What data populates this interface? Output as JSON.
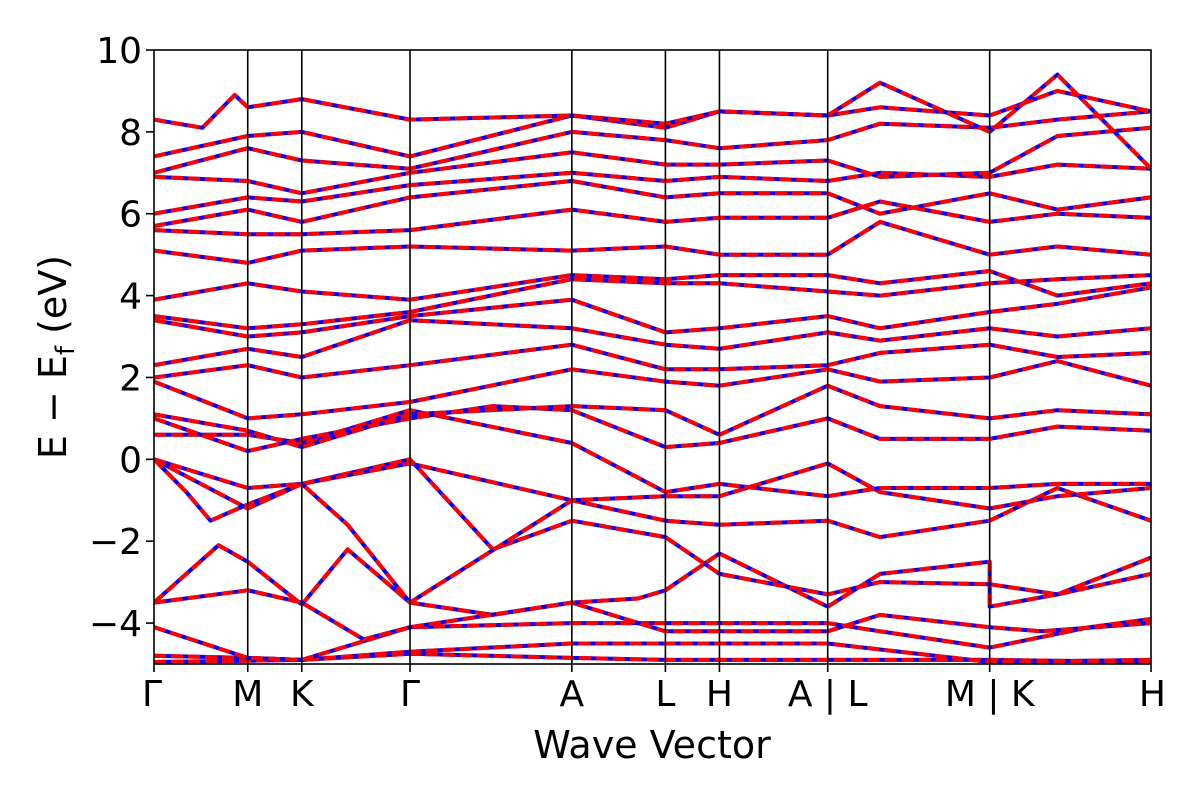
{
  "chart_data": {
    "type": "line",
    "xlabel": "Wave Vector",
    "ylabel": "E − E",
    "ylabel_sub": "f",
    "ylabel_unit": " (eV)",
    "ylim": [
      -5,
      10
    ],
    "yticks": [
      -4,
      -2,
      0,
      2,
      4,
      6,
      8,
      10
    ],
    "ytick_labels": [
      "−4",
      "−2",
      "0",
      "2",
      "4",
      "6",
      "8",
      "10"
    ],
    "kpath_labels": [
      "Γ",
      "M",
      "K",
      "Γ",
      "A",
      "L",
      "H",
      "A | L",
      "M | K",
      "H"
    ],
    "kpath_positions": [
      0,
      0.581,
      0.916,
      1.587,
      2.59,
      3.17,
      3.505,
      4.176,
      5.18,
      6.18
    ],
    "series_styles": [
      {
        "color": "#0000ff",
        "dash": "solid"
      },
      {
        "color": "#ff0000",
        "dash": "dashed"
      }
    ],
    "bands": [
      [
        [
          0,
          -4.95
        ],
        [
          0.916,
          -4.9
        ],
        [
          1.587,
          -4.75
        ],
        [
          2.59,
          -4.85
        ],
        [
          3.17,
          -4.9
        ],
        [
          4.176,
          -4.9
        ],
        [
          5.18,
          -4.9
        ],
        [
          6.18,
          -4.95
        ]
      ],
      [
        [
          0,
          -4.8
        ],
        [
          0.581,
          -4.85
        ],
        [
          0.916,
          -4.9
        ],
        [
          1.587,
          -4.7
        ],
        [
          2.59,
          -4.5
        ],
        [
          3.17,
          -4.5
        ],
        [
          3.505,
          -4.5
        ],
        [
          4.176,
          -4.5
        ],
        [
          5.18,
          -4.95
        ],
        [
          6.18,
          -4.9
        ]
      ],
      [
        [
          0,
          -4.1
        ],
        [
          0.581,
          -4.85
        ],
        [
          0.916,
          -4.9
        ],
        [
          1.587,
          -4.1
        ],
        [
          2.59,
          -4.0
        ],
        [
          3.17,
          -4.0
        ],
        [
          3.505,
          -4.0
        ],
        [
          4.176,
          -4.0
        ],
        [
          4.5,
          -4.2
        ],
        [
          5.18,
          -4.6
        ],
        [
          5.8,
          -4.1
        ],
        [
          6.18,
          -3.9
        ]
      ],
      [
        [
          0,
          -3.5
        ],
        [
          0.4,
          -2.1
        ],
        [
          0.581,
          -2.5
        ],
        [
          0.916,
          -3.55
        ],
        [
          1.2,
          -2.2
        ],
        [
          1.587,
          -3.5
        ],
        [
          2.1,
          -3.8
        ],
        [
          2.59,
          -3.5
        ],
        [
          3.17,
          -4.2
        ],
        [
          3.505,
          -4.2
        ],
        [
          4.176,
          -4.2
        ],
        [
          4.5,
          -3.8
        ],
        [
          5.18,
          -4.1
        ],
        [
          5.5,
          -4.2
        ],
        [
          6.18,
          -4.0
        ]
      ],
      [
        [
          0,
          -3.5
        ],
        [
          0.581,
          -3.2
        ],
        [
          0.916,
          -3.5
        ],
        [
          1.3,
          -4.4
        ],
        [
          1.587,
          -4.1
        ],
        [
          2.59,
          -3.5
        ],
        [
          3.0,
          -3.4
        ],
        [
          3.17,
          -3.2
        ],
        [
          3.505,
          -2.3
        ],
        [
          4.176,
          -3.6
        ],
        [
          4.5,
          -2.8
        ],
        [
          5.18,
          -2.5
        ],
        [
          5.18,
          -3.6
        ],
        [
          5.6,
          -3.3
        ],
        [
          6.18,
          -2.8
        ]
      ],
      [
        [
          0,
          0.0
        ],
        [
          0.2,
          -0.8
        ],
        [
          0.35,
          -1.5
        ],
        [
          0.581,
          -1.1
        ],
        [
          0.916,
          -0.6
        ],
        [
          1.587,
          0.0
        ],
        [
          2.1,
          -2.2
        ],
        [
          2.59,
          -1.5
        ],
        [
          3.17,
          -1.9
        ],
        [
          3.505,
          -2.8
        ],
        [
          4.176,
          -3.3
        ],
        [
          4.5,
          -3.0
        ],
        [
          5.18,
          -3.05
        ],
        [
          5.6,
          -3.3
        ],
        [
          6.18,
          -2.4
        ]
      ],
      [
        [
          0,
          0.0
        ],
        [
          0.581,
          -0.7
        ],
        [
          0.916,
          -0.6
        ],
        [
          1.587,
          -0.1
        ],
        [
          2.59,
          -1.0
        ],
        [
          3.17,
          -1.5
        ],
        [
          3.505,
          -1.6
        ],
        [
          4.176,
          -1.5
        ],
        [
          4.5,
          -1.9
        ],
        [
          5.18,
          -1.5
        ],
        [
          5.6,
          -0.7
        ],
        [
          6.18,
          -1.5
        ]
      ],
      [
        [
          0,
          0.0
        ],
        [
          0.581,
          -1.2
        ],
        [
          0.916,
          -0.6
        ],
        [
          1.2,
          -1.6
        ],
        [
          1.587,
          -3.5
        ],
        [
          2.59,
          -1.0
        ],
        [
          3.17,
          -0.9
        ],
        [
          3.505,
          -0.9
        ],
        [
          4.176,
          -0.1
        ],
        [
          4.5,
          -0.8
        ],
        [
          5.18,
          -1.2
        ],
        [
          5.6,
          -0.9
        ],
        [
          6.18,
          -0.7
        ]
      ],
      [
        [
          0,
          0.6
        ],
        [
          0.581,
          0.6
        ],
        [
          0.916,
          0.4
        ],
        [
          1.587,
          1.2
        ],
        [
          2.59,
          0.4
        ],
        [
          3.17,
          -0.8
        ],
        [
          3.505,
          -0.6
        ],
        [
          4.176,
          -0.9
        ],
        [
          4.5,
          -0.7
        ],
        [
          5.18,
          -0.7
        ],
        [
          5.6,
          -0.6
        ],
        [
          6.18,
          -0.6
        ]
      ],
      [
        [
          0,
          1.0
        ],
        [
          0.581,
          0.2
        ],
        [
          0.916,
          0.5
        ],
        [
          1.587,
          1.0
        ],
        [
          2.1,
          1.3
        ],
        [
          2.59,
          1.2
        ],
        [
          3.17,
          0.3
        ],
        [
          3.505,
          0.4
        ],
        [
          4.176,
          1.0
        ],
        [
          4.5,
          0.5
        ],
        [
          5.18,
          0.5
        ],
        [
          5.6,
          0.8
        ],
        [
          6.18,
          0.7
        ]
      ],
      [
        [
          0,
          1.1
        ],
        [
          0.581,
          0.7
        ],
        [
          0.916,
          0.3
        ],
        [
          1.587,
          1.1
        ],
        [
          2.59,
          1.3
        ],
        [
          3.17,
          1.2
        ],
        [
          3.505,
          0.6
        ],
        [
          4.176,
          1.8
        ],
        [
          4.5,
          1.3
        ],
        [
          5.18,
          1.0
        ],
        [
          5.6,
          1.2
        ],
        [
          6.18,
          1.1
        ]
      ],
      [
        [
          0,
          1.9
        ],
        [
          0.581,
          1.0
        ],
        [
          0.916,
          1.1
        ],
        [
          1.587,
          1.4
        ],
        [
          2.59,
          2.2
        ],
        [
          3.17,
          1.9
        ],
        [
          3.505,
          1.8
        ],
        [
          4.176,
          2.2
        ],
        [
          4.5,
          1.9
        ],
        [
          5.18,
          2.0
        ],
        [
          5.6,
          2.4
        ],
        [
          6.18,
          1.8
        ]
      ],
      [
        [
          0,
          2.0
        ],
        [
          0.581,
          2.3
        ],
        [
          0.916,
          2.0
        ],
        [
          1.587,
          2.3
        ],
        [
          2.59,
          2.8
        ],
        [
          3.17,
          2.2
        ],
        [
          3.505,
          2.2
        ],
        [
          4.176,
          2.3
        ],
        [
          4.5,
          2.6
        ],
        [
          5.18,
          2.8
        ],
        [
          5.6,
          2.5
        ],
        [
          6.18,
          2.6
        ]
      ],
      [
        [
          0,
          2.3
        ],
        [
          0.581,
          2.7
        ],
        [
          0.916,
          2.5
        ],
        [
          1.587,
          3.4
        ],
        [
          2.59,
          3.2
        ],
        [
          3.17,
          2.8
        ],
        [
          3.505,
          2.7
        ],
        [
          4.176,
          3.1
        ],
        [
          4.5,
          2.9
        ],
        [
          5.18,
          3.2
        ],
        [
          5.6,
          3.0
        ],
        [
          6.18,
          3.2
        ]
      ],
      [
        [
          0,
          3.4
        ],
        [
          0.581,
          3.0
        ],
        [
          0.916,
          3.1
        ],
        [
          1.587,
          3.5
        ],
        [
          2.59,
          3.9
        ],
        [
          3.17,
          3.1
        ],
        [
          3.505,
          3.2
        ],
        [
          4.176,
          3.5
        ],
        [
          4.5,
          3.2
        ],
        [
          5.18,
          3.6
        ],
        [
          5.6,
          3.8
        ],
        [
          6.18,
          4.2
        ]
      ],
      [
        [
          0,
          3.5
        ],
        [
          0.581,
          3.2
        ],
        [
          0.916,
          3.3
        ],
        [
          1.587,
          3.6
        ],
        [
          2.59,
          4.4
        ],
        [
          3.17,
          4.3
        ],
        [
          3.505,
          4.3
        ],
        [
          4.176,
          4.1
        ],
        [
          4.5,
          4.0
        ],
        [
          5.18,
          4.3
        ],
        [
          5.6,
          4.4
        ],
        [
          6.18,
          4.5
        ]
      ],
      [
        [
          0,
          3.9
        ],
        [
          0.581,
          4.3
        ],
        [
          0.916,
          4.1
        ],
        [
          1.587,
          3.9
        ],
        [
          2.59,
          4.5
        ],
        [
          3.17,
          4.4
        ],
        [
          3.505,
          4.5
        ],
        [
          4.176,
          4.5
        ],
        [
          4.5,
          4.3
        ],
        [
          5.18,
          4.6
        ],
        [
          5.6,
          4.0
        ],
        [
          6.18,
          4.3
        ]
      ],
      [
        [
          0,
          5.1
        ],
        [
          0.581,
          4.8
        ],
        [
          0.916,
          5.1
        ],
        [
          1.587,
          5.2
        ],
        [
          2.59,
          5.1
        ],
        [
          3.17,
          5.2
        ],
        [
          3.505,
          5.0
        ],
        [
          4.176,
          5.0
        ],
        [
          4.5,
          5.8
        ],
        [
          5.18,
          5.0
        ],
        [
          5.6,
          5.2
        ],
        [
          6.18,
          5.0
        ]
      ],
      [
        [
          0,
          5.6
        ],
        [
          0.581,
          5.5
        ],
        [
          0.916,
          5.5
        ],
        [
          1.587,
          5.6
        ],
        [
          2.59,
          6.1
        ],
        [
          3.17,
          5.8
        ],
        [
          3.505,
          5.9
        ],
        [
          4.176,
          5.9
        ],
        [
          4.5,
          6.3
        ],
        [
          5.18,
          5.8
        ],
        [
          5.6,
          6.0
        ],
        [
          6.18,
          5.9
        ]
      ],
      [
        [
          0,
          5.7
        ],
        [
          0.581,
          6.1
        ],
        [
          0.916,
          5.8
        ],
        [
          1.587,
          6.4
        ],
        [
          2.59,
          6.8
        ],
        [
          3.17,
          6.4
        ],
        [
          3.505,
          6.5
        ],
        [
          4.176,
          6.5
        ],
        [
          4.5,
          6.0
        ],
        [
          5.18,
          6.5
        ],
        [
          5.6,
          6.1
        ],
        [
          6.18,
          6.4
        ]
      ],
      [
        [
          0,
          6.0
        ],
        [
          0.581,
          6.4
        ],
        [
          0.916,
          6.3
        ],
        [
          1.587,
          6.7
        ],
        [
          2.59,
          7.0
        ],
        [
          3.17,
          6.8
        ],
        [
          3.505,
          6.9
        ],
        [
          4.176,
          6.8
        ],
        [
          4.5,
          7.0
        ],
        [
          5.18,
          6.9
        ],
        [
          5.6,
          7.2
        ],
        [
          6.18,
          7.1
        ]
      ],
      [
        [
          0,
          6.9
        ],
        [
          0.581,
          6.8
        ],
        [
          0.916,
          6.5
        ],
        [
          1.587,
          7.0
        ],
        [
          2.59,
          7.5
        ],
        [
          3.17,
          7.2
        ],
        [
          3.505,
          7.2
        ],
        [
          4.176,
          7.3
        ],
        [
          4.5,
          6.9
        ],
        [
          5.18,
          7.0
        ],
        [
          5.6,
          7.9
        ],
        [
          6.18,
          8.1
        ]
      ],
      [
        [
          0,
          7.0
        ],
        [
          0.581,
          7.6
        ],
        [
          0.916,
          7.3
        ],
        [
          1.587,
          7.1
        ],
        [
          2.59,
          8.0
        ],
        [
          3.17,
          7.8
        ],
        [
          3.505,
          7.6
        ],
        [
          4.176,
          7.8
        ],
        [
          4.5,
          8.2
        ],
        [
          5.18,
          8.1
        ],
        [
          5.6,
          8.3
        ],
        [
          6.18,
          8.5
        ]
      ],
      [
        [
          0,
          7.4
        ],
        [
          0.581,
          7.9
        ],
        [
          0.916,
          8.0
        ],
        [
          1.587,
          7.4
        ],
        [
          2.59,
          8.4
        ],
        [
          3.17,
          8.1
        ],
        [
          3.505,
          8.5
        ],
        [
          4.176,
          8.4
        ],
        [
          4.5,
          8.6
        ],
        [
          5.18,
          8.4
        ],
        [
          5.6,
          9.0
        ],
        [
          6.18,
          8.5
        ]
      ],
      [
        [
          0,
          8.3
        ],
        [
          0.3,
          8.1
        ],
        [
          0.5,
          8.9
        ],
        [
          0.581,
          8.6
        ],
        [
          0.916,
          8.8
        ],
        [
          1.587,
          8.3
        ],
        [
          2.59,
          8.4
        ],
        [
          3.17,
          8.2
        ],
        [
          3.505,
          8.5
        ],
        [
          4.176,
          8.4
        ],
        [
          4.5,
          9.2
        ],
        [
          5.18,
          8.0
        ],
        [
          5.6,
          9.4
        ],
        [
          6.18,
          7.1
        ]
      ]
    ]
  }
}
